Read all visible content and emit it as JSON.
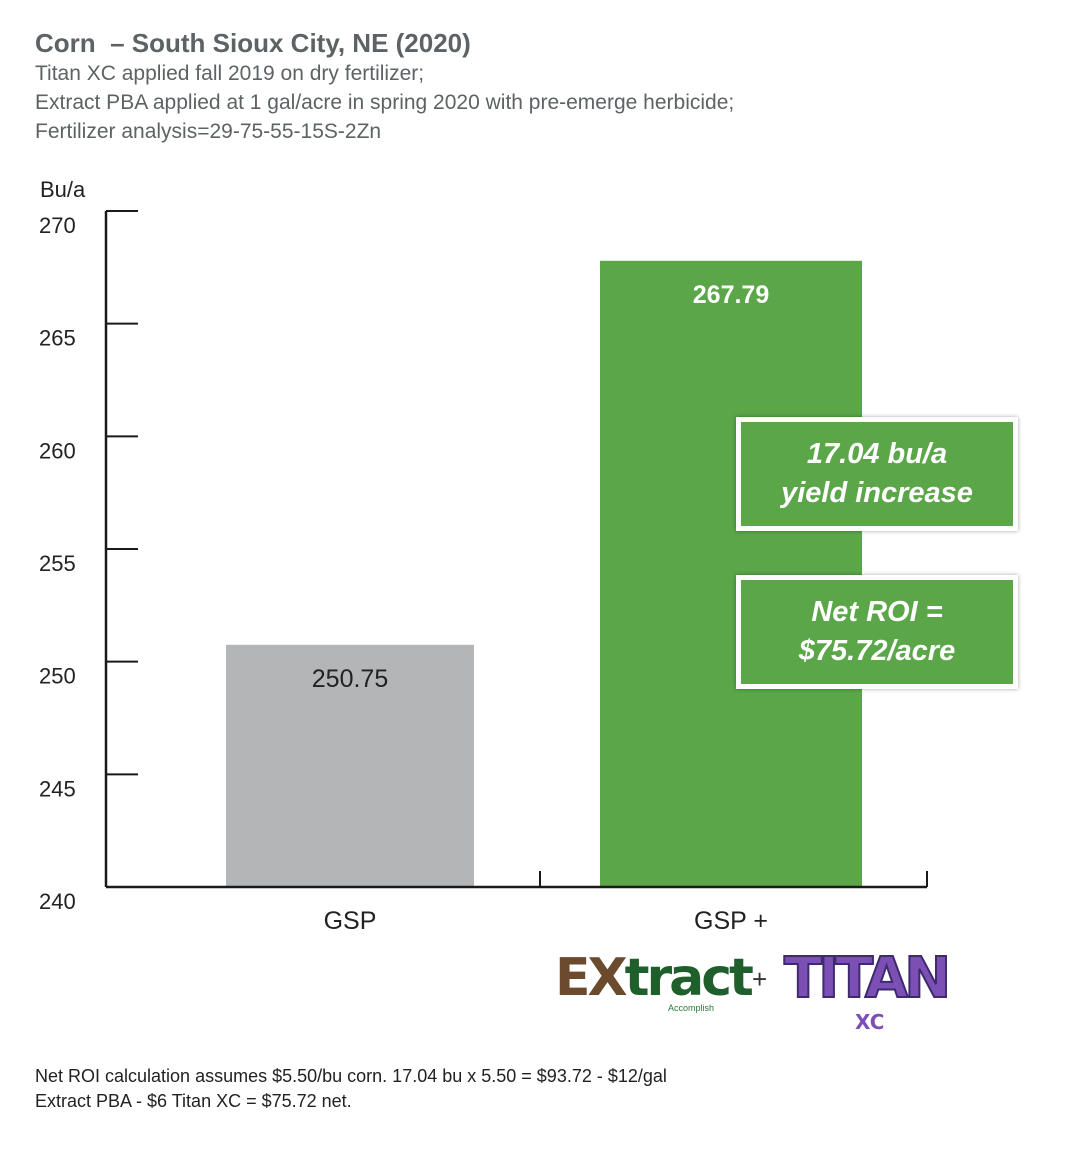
{
  "header": {
    "title": "Corn  – South Sioux City, NE (2020)",
    "subtitle_lines": [
      "Titan XC applied fall 2019 on dry fertilizer;",
      "Extract PBA applied at 1 gal/acre in spring 2020 with pre-emerge herbicide;",
      "Fertilizer analysis=29-75-55-15S-2Zn"
    ]
  },
  "chart_data": {
    "type": "bar",
    "title": "Corn  – South Sioux City, NE (2020)",
    "ylabel": "Bu/a",
    "xlabel": "",
    "ylim": [
      240,
      270
    ],
    "yticks": [
      240,
      245,
      250,
      255,
      260,
      265,
      270
    ],
    "categories": [
      "GSP",
      "GSP +"
    ],
    "values": [
      250.75,
      267.79
    ],
    "value_labels": [
      "250.75",
      "267.79"
    ],
    "colors": [
      "#b3b5b6",
      "#5aa649"
    ]
  },
  "callouts": {
    "yield": {
      "line1": "17.04 bu/a",
      "line2": "yield increase"
    },
    "roi": {
      "line1": "Net ROI =",
      "line2": "$75.72/acre"
    }
  },
  "logos": {
    "extract_x": "EX",
    "extract_rest": "tract",
    "extract_sub": "Accomplish",
    "plus": "+",
    "titan": "TITAN",
    "titan_sub": "XC"
  },
  "footnote": {
    "line1": "Net ROI calculation assumes $5.50/bu corn. 17.04 bu x 5.50 = $93.72 - $12/gal",
    "line2": "Extract PBA - $6 Titan XC = $75.72 net."
  },
  "colors": {
    "green": "#5aa649",
    "gray_bar": "#b3b5b6",
    "axis": "#1a1a1a"
  }
}
